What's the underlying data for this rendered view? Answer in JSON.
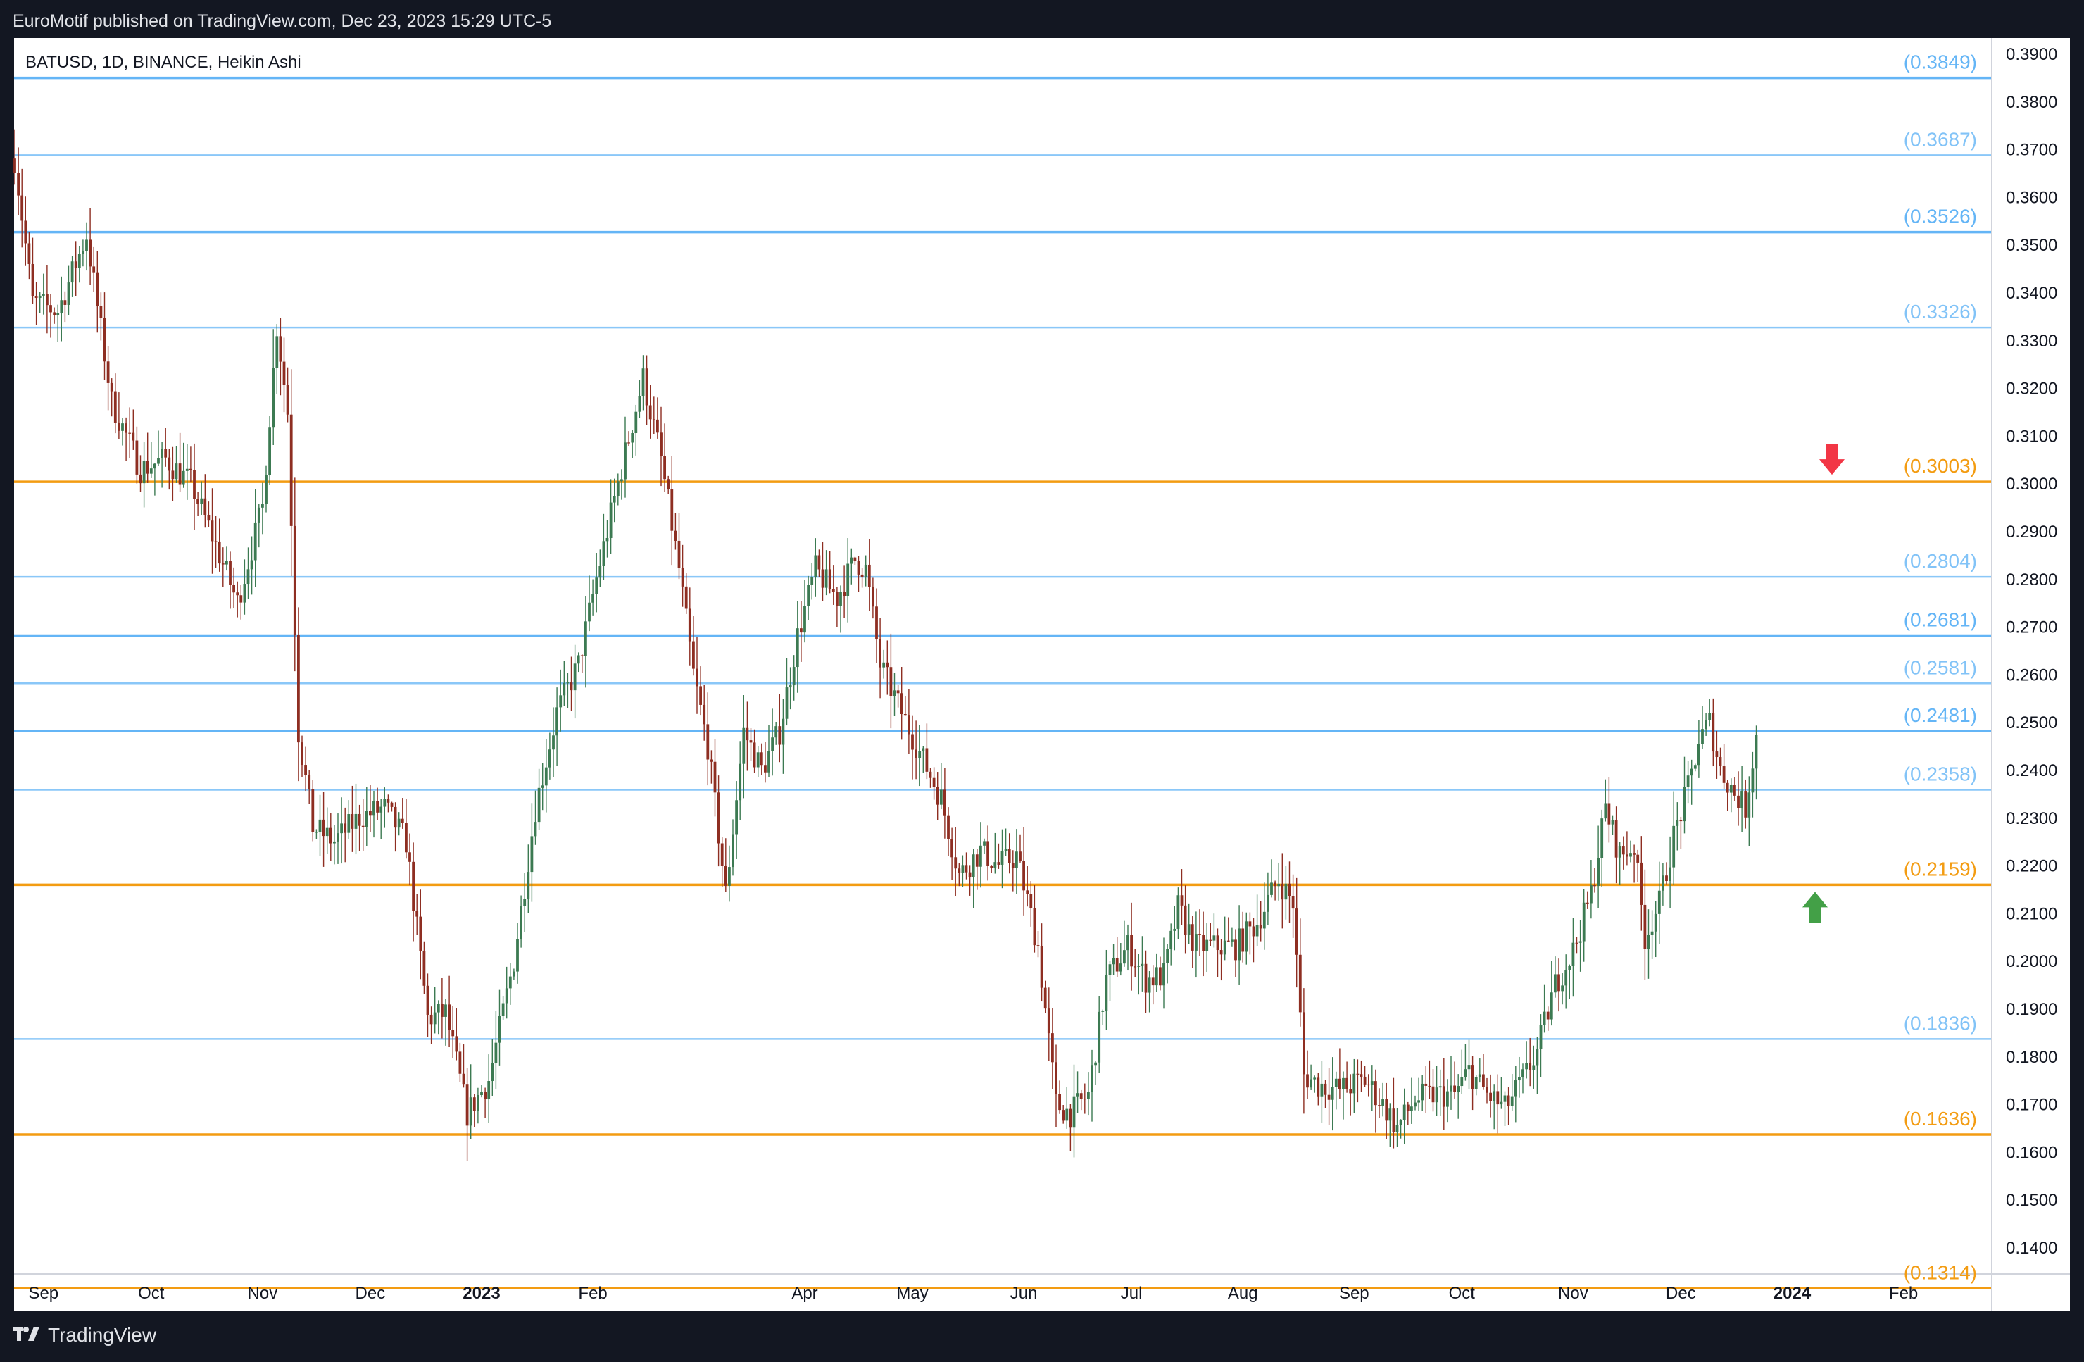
{
  "header": {
    "published_by": "EuroMotif published on TradingView.com, Dec 23, 2023 15:29 UTC-5"
  },
  "footer": {
    "brand_name": "TradingView",
    "brand_icon": "tradingview-logo-icon"
  },
  "colors": {
    "frame": "#131722",
    "plot_background": "#ffffff",
    "bullish_candle": "#3c7a52",
    "bearish_candle": "#8e2e22",
    "blue_level": "#64b5f6",
    "orange_level": "#f39c12",
    "arrow_down": "#f23645",
    "arrow_up": "#43a047"
  },
  "chart_data": {
    "type": "candlestick",
    "title": "BATUSD, 1D, BINANCE, Heikin Ashi",
    "ylim": [
      0.1314,
      0.39
    ],
    "grid": false,
    "y_ticks": [
      "0.3900",
      "0.3800",
      "0.3700",
      "0.3600",
      "0.3500",
      "0.3400",
      "0.3300",
      "0.3200",
      "0.3100",
      "0.3000",
      "0.2900",
      "0.2800",
      "0.2700",
      "0.2600",
      "0.2500",
      "0.2400",
      "0.2300",
      "0.2200",
      "0.2100",
      "0.2000",
      "0.1900",
      "0.1800",
      "0.1700",
      "0.1600",
      "0.1500",
      "0.1400"
    ],
    "x_ticks": [
      "Sep",
      "Oct",
      "Nov",
      "Dec",
      "2023",
      "Feb",
      "Apr",
      "May",
      "Jun",
      "Jul",
      "Aug",
      "Sep",
      "Oct",
      "Nov",
      "Dec",
      "2024",
      "Feb"
    ],
    "x_ticks_bold": [
      "2023",
      "2024"
    ],
    "levels": [
      {
        "value": 0.3849,
        "label": "(0.3849)",
        "color": "blue",
        "weight": "strong"
      },
      {
        "value": 0.3687,
        "label": "(0.3687)",
        "color": "blue",
        "weight": "light"
      },
      {
        "value": 0.3526,
        "label": "(0.3526)",
        "color": "blue",
        "weight": "strong"
      },
      {
        "value": 0.3326,
        "label": "(0.3326)",
        "color": "blue",
        "weight": "light"
      },
      {
        "value": 0.3003,
        "label": "(0.3003)",
        "color": "orange",
        "weight": "strong"
      },
      {
        "value": 0.2804,
        "label": "(0.2804)",
        "color": "blue",
        "weight": "light"
      },
      {
        "value": 0.2681,
        "label": "(0.2681)",
        "color": "blue",
        "weight": "strong"
      },
      {
        "value": 0.2581,
        "label": "(0.2581)",
        "color": "blue",
        "weight": "light"
      },
      {
        "value": 0.2481,
        "label": "(0.2481)",
        "color": "blue",
        "weight": "strong"
      },
      {
        "value": 0.2358,
        "label": "(0.2358)",
        "color": "blue",
        "weight": "light"
      },
      {
        "value": 0.2159,
        "label": "(0.2159)",
        "color": "orange",
        "weight": "strong"
      },
      {
        "value": 0.1836,
        "label": "(0.1836)",
        "color": "blue",
        "weight": "light"
      },
      {
        "value": 0.1636,
        "label": "(0.1636)",
        "color": "orange",
        "weight": "strong"
      },
      {
        "value": 0.1314,
        "label": "(0.1314)",
        "color": "orange",
        "weight": "strong"
      }
    ],
    "arrows": [
      {
        "direction": "down",
        "price": 0.3003,
        "icon": "arrow-down-icon"
      },
      {
        "direction": "up",
        "price": 0.2159,
        "icon": "arrow-up-icon"
      }
    ],
    "price_path": [
      [
        "2022-08-24",
        0.368
      ],
      [
        "2022-08-29",
        0.338
      ],
      [
        "2022-09-05",
        0.336
      ],
      [
        "2022-09-13",
        0.352
      ],
      [
        "2022-09-20",
        0.317
      ],
      [
        "2022-09-28",
        0.303
      ],
      [
        "2022-10-05",
        0.305
      ],
      [
        "2022-10-12",
        0.3
      ],
      [
        "2022-10-18",
        0.289
      ],
      [
        "2022-10-25",
        0.275
      ],
      [
        "2022-11-01",
        0.295
      ],
      [
        "2022-11-05",
        0.333
      ],
      [
        "2022-11-08",
        0.315
      ],
      [
        "2022-11-11",
        0.248
      ],
      [
        "2022-11-15",
        0.228
      ],
      [
        "2022-11-21",
        0.225
      ],
      [
        "2022-11-28",
        0.23
      ],
      [
        "2022-12-05",
        0.232
      ],
      [
        "2022-12-11",
        0.225
      ],
      [
        "2022-12-17",
        0.188
      ],
      [
        "2022-12-22",
        0.189
      ],
      [
        "2022-12-28",
        0.168
      ],
      [
        "2023-01-03",
        0.175
      ],
      [
        "2023-01-10",
        0.2
      ],
      [
        "2023-01-16",
        0.232
      ],
      [
        "2023-01-22",
        0.252
      ],
      [
        "2023-01-28",
        0.262
      ],
      [
        "2023-02-02",
        0.28
      ],
      [
        "2023-02-08",
        0.3
      ],
      [
        "2023-02-15",
        0.322
      ],
      [
        "2023-02-20",
        0.305
      ],
      [
        "2023-02-25",
        0.282
      ],
      [
        "2023-03-01",
        0.26
      ],
      [
        "2023-03-05",
        0.245
      ],
      [
        "2023-03-10",
        0.214
      ],
      [
        "2023-03-15",
        0.248
      ],
      [
        "2023-03-20",
        0.24
      ],
      [
        "2023-03-25",
        0.248
      ],
      [
        "2023-03-30",
        0.268
      ],
      [
        "2023-04-04",
        0.282
      ],
      [
        "2023-04-10",
        0.276
      ],
      [
        "2023-04-15",
        0.284
      ],
      [
        "2023-04-18",
        0.282
      ],
      [
        "2023-04-22",
        0.262
      ],
      [
        "2023-04-28",
        0.252
      ],
      [
        "2023-05-04",
        0.242
      ],
      [
        "2023-05-09",
        0.234
      ],
      [
        "2023-05-14",
        0.218
      ],
      [
        "2023-05-20",
        0.223
      ],
      [
        "2023-05-25",
        0.22
      ],
      [
        "2023-05-30",
        0.222
      ],
      [
        "2023-06-05",
        0.203
      ],
      [
        "2023-06-10",
        0.17
      ],
      [
        "2023-06-14",
        0.168
      ],
      [
        "2023-06-19",
        0.172
      ],
      [
        "2023-06-24",
        0.196
      ],
      [
        "2023-06-30",
        0.203
      ],
      [
        "2023-07-05",
        0.196
      ],
      [
        "2023-07-10",
        0.197
      ],
      [
        "2023-07-14",
        0.211
      ],
      [
        "2023-07-19",
        0.203
      ],
      [
        "2023-07-24",
        0.203
      ],
      [
        "2023-07-30",
        0.203
      ],
      [
        "2023-08-05",
        0.208
      ],
      [
        "2023-08-11",
        0.217
      ],
      [
        "2023-08-15",
        0.212
      ],
      [
        "2023-08-18",
        0.176
      ],
      [
        "2023-08-22",
        0.174
      ],
      [
        "2023-08-28",
        0.173
      ],
      [
        "2023-09-04",
        0.175
      ],
      [
        "2023-09-09",
        0.17
      ],
      [
        "2023-09-13",
        0.165
      ],
      [
        "2023-09-18",
        0.171
      ],
      [
        "2023-09-24",
        0.172
      ],
      [
        "2023-09-29",
        0.172
      ],
      [
        "2023-10-03",
        0.177
      ],
      [
        "2023-10-08",
        0.172
      ],
      [
        "2023-10-13",
        0.169
      ],
      [
        "2023-10-18",
        0.175
      ],
      [
        "2023-10-22",
        0.181
      ],
      [
        "2023-10-27",
        0.195
      ],
      [
        "2023-11-01",
        0.202
      ],
      [
        "2023-11-06",
        0.214
      ],
      [
        "2023-11-10",
        0.232
      ],
      [
        "2023-11-14",
        0.222
      ],
      [
        "2023-11-18",
        0.224
      ],
      [
        "2023-11-21",
        0.205
      ],
      [
        "2023-11-25",
        0.212
      ],
      [
        "2023-11-29",
        0.226
      ],
      [
        "2023-12-03",
        0.236
      ],
      [
        "2023-12-06",
        0.246
      ],
      [
        "2023-12-09",
        0.25
      ],
      [
        "2023-12-12",
        0.24
      ],
      [
        "2023-12-16",
        0.235
      ],
      [
        "2023-12-19",
        0.232
      ],
      [
        "2023-12-22",
        0.247
      ]
    ]
  }
}
